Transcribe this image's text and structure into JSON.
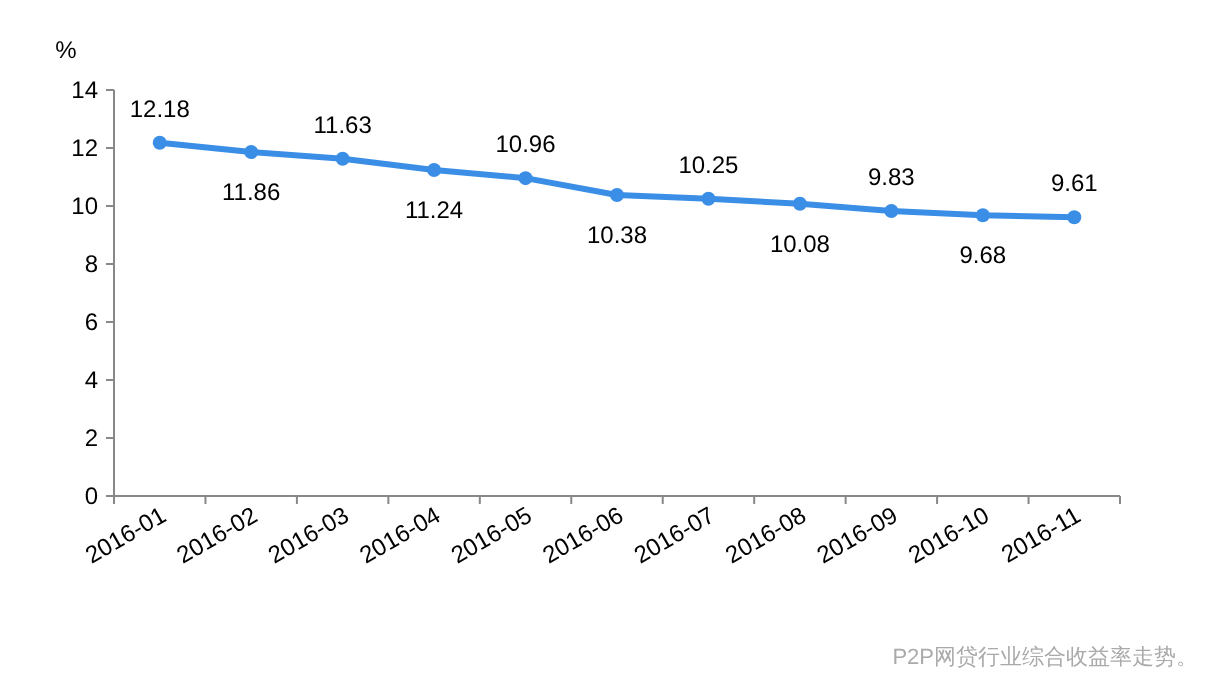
{
  "chart_data": {
    "type": "line",
    "ylabel": "%",
    "categories": [
      "2016-01",
      "2016-02",
      "2016-03",
      "2016-04",
      "2016-05",
      "2016-06",
      "2016-07",
      "2016-08",
      "2016-09",
      "2016-10",
      "2016-11"
    ],
    "series": [
      {
        "color": "#3a8ee6",
        "values": [
          12.18,
          11.86,
          11.63,
          11.24,
          10.96,
          10.38,
          10.25,
          10.08,
          9.83,
          9.68,
          9.61
        ]
      }
    ],
    "ylim": [
      0,
      14
    ],
    "yticks": [
      0,
      2,
      4,
      6,
      8,
      10,
      12,
      14
    ],
    "data_labels": true,
    "marker": "circle",
    "line_style": "solid",
    "grid": false,
    "annotations": [
      "P2P网贷行业综合收益率走势。"
    ]
  }
}
